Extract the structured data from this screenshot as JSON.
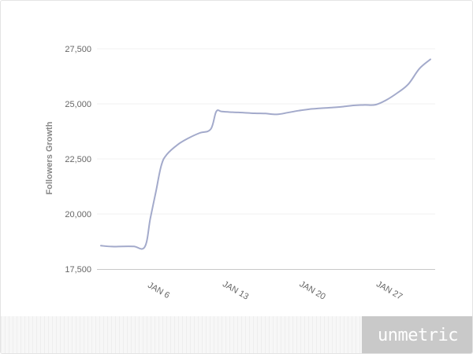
{
  "chart_data": {
    "type": "line",
    "title": "",
    "xlabel": "",
    "ylabel": "Followers Growth",
    "ylim": [
      17500,
      27500
    ],
    "yticks": [
      17500,
      20000,
      22500,
      25000,
      27500
    ],
    "ytick_labels": [
      "17,500",
      "20,000",
      "22,500",
      "25,000",
      "27,500"
    ],
    "xticks": [
      {
        "label": "JAN 6",
        "date": "2014-01-06"
      },
      {
        "label": "JAN 13",
        "date": "2014-01-13"
      },
      {
        "label": "JAN 20",
        "date": "2014-01-20"
      },
      {
        "label": "JAN 27",
        "date": "2014-01-27"
      }
    ],
    "xlim": [
      "2014-01-01",
      "2014-01-31"
    ],
    "grid": true,
    "line_color": "#a3aacb",
    "series": [
      {
        "name": "",
        "points": [
          {
            "x": "2014-01-01",
            "y": 18560
          },
          {
            "x": "2014-01-02",
            "y": 18520
          },
          {
            "x": "2014-01-03",
            "y": 18530
          },
          {
            "x": "2014-01-04",
            "y": 18530
          },
          {
            "x": "2014-01-05",
            "y": 18510
          },
          {
            "x": "2014-01-05 12:00",
            "y": 19800
          },
          {
            "x": "2014-01-06",
            "y": 21000
          },
          {
            "x": "2014-01-06 12:00",
            "y": 22200
          },
          {
            "x": "2014-01-07",
            "y": 22700
          },
          {
            "x": "2014-01-08",
            "y": 23150
          },
          {
            "x": "2014-01-09",
            "y": 23450
          },
          {
            "x": "2014-01-10",
            "y": 23680
          },
          {
            "x": "2014-01-11",
            "y": 23850
          },
          {
            "x": "2014-01-11 12:00",
            "y": 24650
          },
          {
            "x": "2014-01-12",
            "y": 24650
          },
          {
            "x": "2014-01-13",
            "y": 24620
          },
          {
            "x": "2014-01-14",
            "y": 24600
          },
          {
            "x": "2014-01-15",
            "y": 24570
          },
          {
            "x": "2014-01-16",
            "y": 24560
          },
          {
            "x": "2014-01-17",
            "y": 24520
          },
          {
            "x": "2014-01-18",
            "y": 24600
          },
          {
            "x": "2014-01-19",
            "y": 24690
          },
          {
            "x": "2014-01-20",
            "y": 24760
          },
          {
            "x": "2014-01-21",
            "y": 24800
          },
          {
            "x": "2014-01-22",
            "y": 24830
          },
          {
            "x": "2014-01-23",
            "y": 24870
          },
          {
            "x": "2014-01-24",
            "y": 24930
          },
          {
            "x": "2014-01-25",
            "y": 24950
          },
          {
            "x": "2014-01-26",
            "y": 24960
          },
          {
            "x": "2014-01-27",
            "y": 25180
          },
          {
            "x": "2014-01-28",
            "y": 25500
          },
          {
            "x": "2014-01-29",
            "y": 25900
          },
          {
            "x": "2014-01-30",
            "y": 26600
          },
          {
            "x": "2014-01-31",
            "y": 27020
          }
        ]
      }
    ]
  },
  "footer": {
    "brand": "unmetric"
  }
}
